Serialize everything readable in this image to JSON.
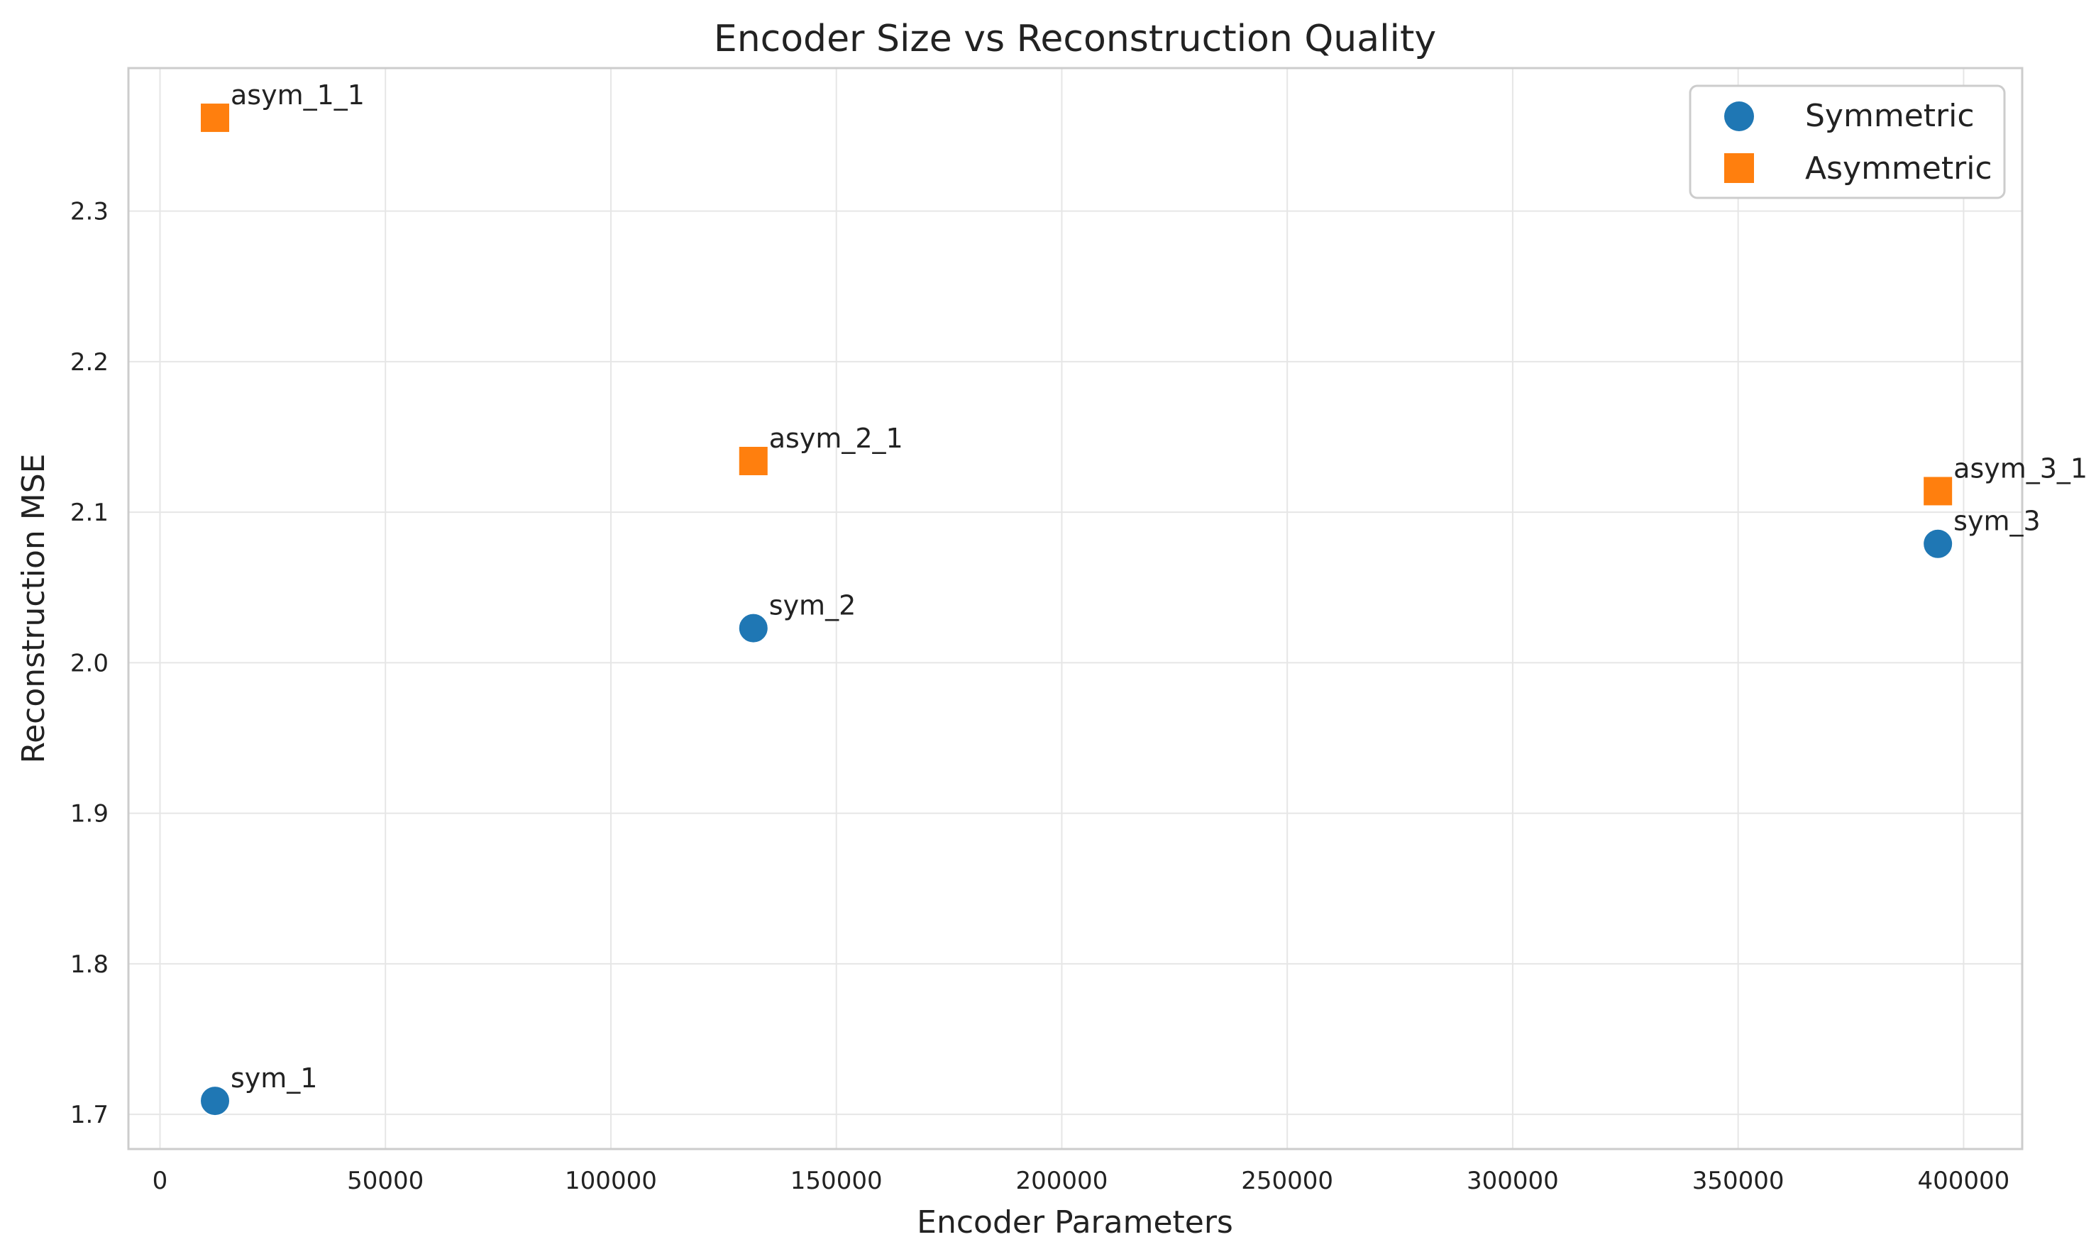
{
  "chart_data": {
    "type": "scatter",
    "title": "Encoder Size vs Reconstruction Quality",
    "xlabel": "Encoder Parameters",
    "ylabel": "Reconstruction MSE",
    "xlim": [
      -7000,
      413000
    ],
    "ylim": [
      1.677,
      2.395
    ],
    "x_ticks": [
      0,
      50000,
      100000,
      150000,
      200000,
      250000,
      300000,
      350000,
      400000
    ],
    "x_tick_labels": [
      "0",
      "50000",
      "100000",
      "150000",
      "200000",
      "250000",
      "300000",
      "350000",
      "400000"
    ],
    "y_ticks": [
      1.7,
      1.8,
      1.9,
      2.0,
      2.1,
      2.2,
      2.3
    ],
    "y_tick_labels": [
      "1.7",
      "1.8",
      "1.9",
      "2.0",
      "2.1",
      "2.2",
      "2.3"
    ],
    "grid": true,
    "legend_position": "top-right",
    "series": [
      {
        "name": "Symmetric",
        "marker": "circle",
        "color": "#1f77b4",
        "points": [
          {
            "x": 12200,
            "y": 1.709,
            "label": "sym_1"
          },
          {
            "x": 131600,
            "y": 2.023,
            "label": "sym_2"
          },
          {
            "x": 394300,
            "y": 2.079,
            "label": "sym_3"
          }
        ]
      },
      {
        "name": "Asymmetric",
        "marker": "square",
        "color": "#ff7f0e",
        "points": [
          {
            "x": 12200,
            "y": 2.362,
            "label": "asym_1_1"
          },
          {
            "x": 131600,
            "y": 2.134,
            "label": "asym_2_1"
          },
          {
            "x": 394300,
            "y": 2.114,
            "label": "asym_3_1"
          }
        ]
      }
    ]
  }
}
